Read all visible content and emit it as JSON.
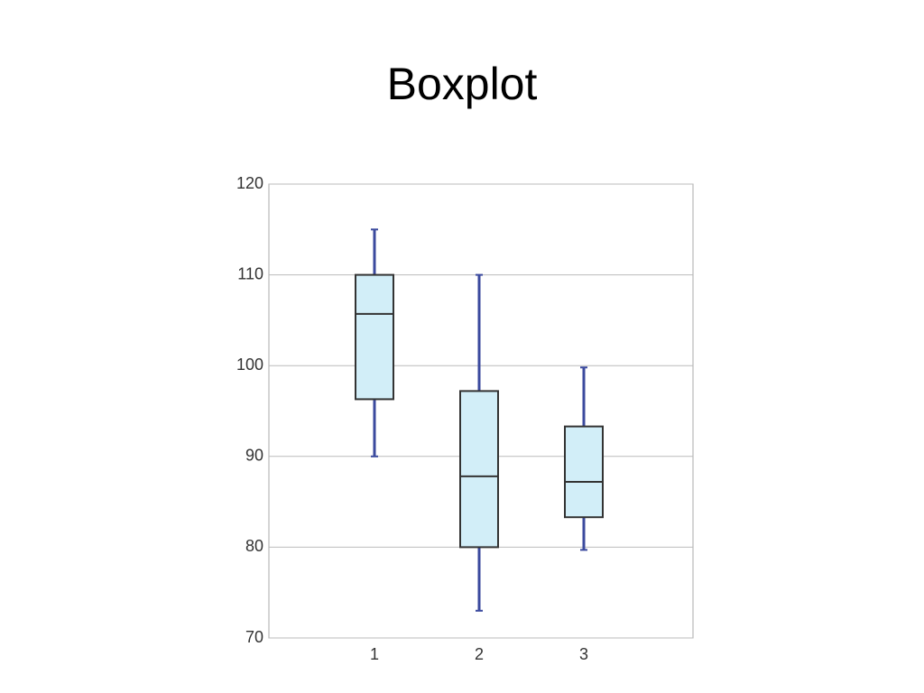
{
  "chart_data": {
    "type": "box",
    "title": "Boxplot",
    "categories": [
      "1",
      "2",
      "3"
    ],
    "min": [
      90,
      73,
      79.7
    ],
    "q1": [
      96.3,
      80,
      83.3
    ],
    "median": [
      105.7,
      87.8,
      87.2
    ],
    "q3": [
      110,
      97.2,
      93.3
    ],
    "max": [
      115,
      110,
      99.8
    ],
    "box_color": "#d2eef8",
    "whisker_color": "#3b4a9e",
    "ylim": [
      70,
      120
    ],
    "yticks": [
      70,
      80,
      90,
      100,
      110,
      120
    ],
    "grid": true
  }
}
